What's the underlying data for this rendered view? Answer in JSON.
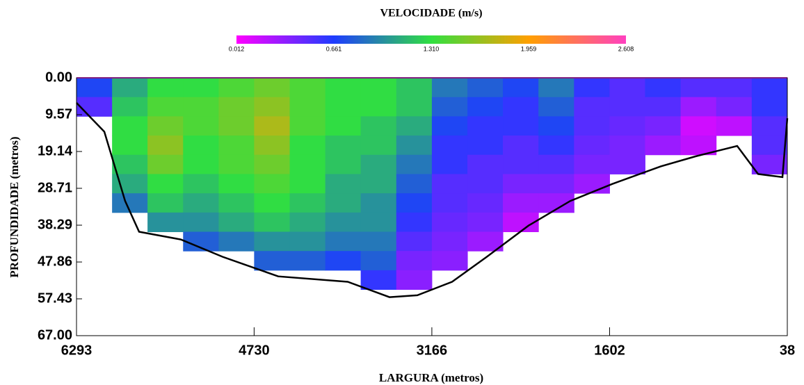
{
  "chart_data": {
    "type": "heatmap",
    "title": "VELOCIDADE (m/s)",
    "colorbar": {
      "ticks": [
        0.012,
        0.661,
        {
          "value": 1.31,
          "label": "1.310"
        },
        1.959,
        2.608
      ],
      "colors": [
        "#ff00ff",
        "#1e3cff",
        "#30e040",
        "#ffa000",
        "#ff40c0"
      ]
    },
    "xlabel": "LARGURA (metros)",
    "ylabel": "PROFUNDIDADE (metros)",
    "xlim": [
      6293,
      38
    ],
    "xticks": [
      6293,
      4730,
      3166,
      1602,
      38
    ],
    "ylim": [
      0,
      67
    ],
    "yticks": [
      {
        "value": 0,
        "label": "0.00"
      },
      9.57,
      19.14,
      28.71,
      38.29,
      47.86,
      57.43,
      {
        "value": 67,
        "label": "67.00"
      }
    ],
    "x_bins": [
      6293,
      5980,
      5668,
      5355,
      5042,
      4730,
      4417,
      4104,
      3792,
      3479,
      3166,
      2853,
      2541,
      2228,
      1915,
      1602,
      1290,
      977,
      664,
      351,
      38
    ],
    "y_bins": [
      0,
      5,
      10,
      15,
      20,
      25,
      30,
      35,
      40,
      45,
      50,
      55,
      60
    ],
    "values": [
      [
        0.7,
        0.5,
        null,
        null,
        null,
        null,
        null,
        null,
        null,
        null,
        null,
        null
      ],
      [
        1.1,
        1.2,
        1.3,
        1.3,
        1.2,
        1.1,
        0.9,
        null,
        null,
        null,
        null,
        null
      ],
      [
        1.3,
        1.4,
        1.5,
        1.6,
        1.5,
        1.3,
        1.2,
        1.0,
        null,
        null,
        null,
        null
      ],
      [
        1.3,
        1.4,
        1.4,
        1.3,
        1.3,
        1.2,
        1.1,
        1.0,
        0.8,
        null,
        null,
        null
      ],
      [
        1.4,
        1.5,
        1.5,
        1.4,
        1.4,
        1.3,
        1.2,
        1.1,
        0.9,
        null,
        null,
        null
      ],
      [
        1.5,
        1.6,
        1.7,
        1.6,
        1.5,
        1.4,
        1.3,
        1.2,
        1.0,
        0.8,
        null,
        null
      ],
      [
        1.4,
        1.4,
        1.4,
        1.3,
        1.3,
        1.3,
        1.2,
        1.1,
        1.0,
        0.8,
        null,
        null
      ],
      [
        1.3,
        1.3,
        1.3,
        1.2,
        1.2,
        1.1,
        1.1,
        1.0,
        0.9,
        0.7,
        null,
        null
      ],
      [
        1.3,
        1.3,
        1.2,
        1.2,
        1.1,
        1.1,
        1.0,
        1.0,
        0.9,
        0.8,
        0.6,
        null
      ],
      [
        1.2,
        1.2,
        1.1,
        1.0,
        0.9,
        0.8,
        0.7,
        0.6,
        0.5,
        0.4,
        0.35,
        null
      ],
      [
        0.9,
        0.8,
        0.7,
        0.6,
        0.6,
        0.5,
        0.5,
        0.45,
        0.4,
        0.35,
        null,
        null
      ],
      [
        0.8,
        0.7,
        0.6,
        0.6,
        0.5,
        0.5,
        0.45,
        0.4,
        0.3,
        null,
        null,
        null
      ],
      [
        0.7,
        0.6,
        0.6,
        0.5,
        0.5,
        0.4,
        0.3,
        0.2,
        null,
        null,
        null,
        null
      ],
      [
        0.9,
        0.8,
        0.7,
        0.6,
        0.5,
        0.4,
        0.3,
        null,
        null,
        null,
        null,
        null
      ],
      [
        0.6,
        0.5,
        0.5,
        0.45,
        0.4,
        0.3,
        null,
        null,
        null,
        null,
        null,
        null
      ],
      [
        0.5,
        0.5,
        0.45,
        0.4,
        0.4,
        null,
        null,
        null,
        null,
        null,
        null,
        null
      ],
      [
        0.6,
        0.5,
        0.4,
        0.3,
        null,
        null,
        null,
        null,
        null,
        null,
        null,
        null
      ],
      [
        0.5,
        0.3,
        0.15,
        0.2,
        null,
        null,
        null,
        null,
        null,
        null,
        null,
        null
      ],
      [
        0.5,
        0.4,
        0.2,
        null,
        null,
        null,
        null,
        null,
        null,
        null,
        null,
        null
      ],
      [
        0.6,
        0.6,
        0.5,
        0.5,
        0.4,
        null,
        null,
        null,
        null,
        null,
        null,
        null
      ]
    ],
    "bottom": {
      "color": "#000000",
      "x": [
        6293,
        6048,
        5865,
        5742,
        5375,
        5008,
        4518,
        3906,
        3539,
        3294,
        2988,
        2682,
        2315,
        1948,
        1580,
        1152,
        846,
        479,
        295,
        81,
        38
      ],
      "depth": [
        6.5,
        14,
        32,
        40,
        42,
        46.5,
        51.6,
        53,
        57,
        56.5,
        53,
        46.5,
        38.4,
        32,
        27.6,
        23,
        20.4,
        17.7,
        25,
        25.8,
        10.5
      ]
    }
  }
}
